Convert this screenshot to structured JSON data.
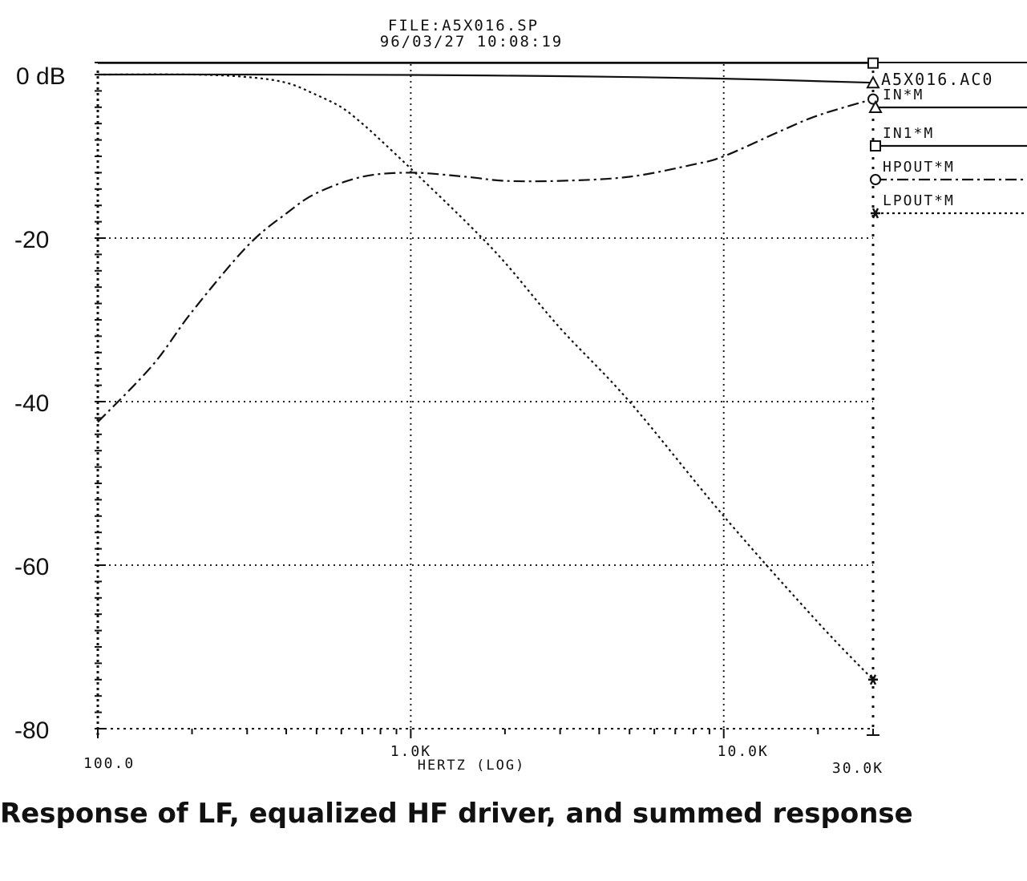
{
  "chart_data": {
    "type": "line",
    "header": {
      "file": "FILE:A5X016.SP",
      "timestamp": "96/03/27 10:08:19"
    },
    "source_label": "A5X016.AC0",
    "xlabel": "HERTZ (LOG)",
    "x_scale": "log",
    "xlim": [
      100,
      30000
    ],
    "ylim": [
      -80,
      0
    ],
    "x_tick_labels": [
      {
        "value": 100,
        "label": "100.0"
      },
      {
        "value": 1000,
        "label": "1.0K"
      },
      {
        "value": 10000,
        "label": "10.0K"
      },
      {
        "value": 30000,
        "label": "30.0K"
      }
    ],
    "y_tick_labels": [
      {
        "value": 0,
        "label": "0 dB"
      },
      {
        "value": -20,
        "label": "-20"
      },
      {
        "value": -40,
        "label": "-40"
      },
      {
        "value": -60,
        "label": "-60"
      },
      {
        "value": -80,
        "label": "-80"
      }
    ],
    "grid": true,
    "legend_placement": "right",
    "series": [
      {
        "name": "IN*M",
        "style": "solid",
        "marker": "triangle",
        "x": [
          100,
          300,
          1000,
          3000,
          10000,
          30000
        ],
        "y": [
          0,
          0,
          -0.05,
          -0.2,
          -0.5,
          -1.0
        ]
      },
      {
        "name": "IN1*M",
        "style": "solid",
        "marker": "square",
        "x": [
          100,
          1000,
          10000,
          30000
        ],
        "y": [
          1.4,
          1.4,
          1.4,
          1.4
        ]
      },
      {
        "name": "HPOUT*M",
        "style": "dash-dot",
        "marker": "circle",
        "x": [
          100,
          150,
          200,
          300,
          400,
          500,
          700,
          1000,
          1500,
          2000,
          3000,
          5000,
          8000,
          10000,
          15000,
          20000,
          30000
        ],
        "y": [
          -42.5,
          -35.5,
          -29,
          -21,
          -17,
          -14.5,
          -12.5,
          -12,
          -12.5,
          -13,
          -13,
          -12.5,
          -11,
          -10,
          -7,
          -5,
          -3
        ]
      },
      {
        "name": "LPOUT*M",
        "style": "dotted",
        "marker": "star",
        "x": [
          100,
          200,
          300,
          400,
          500,
          600,
          700,
          800,
          1000,
          1500,
          2000,
          3000,
          5000,
          10000,
          20000,
          30000
        ],
        "y": [
          0,
          0,
          -0.3,
          -1,
          -2.5,
          -4,
          -6,
          -8,
          -11.5,
          -18,
          -23,
          -31,
          -40,
          -54,
          -67,
          -74
        ]
      }
    ],
    "caption": "Response of LF, equalized HF driver, and summed response"
  }
}
